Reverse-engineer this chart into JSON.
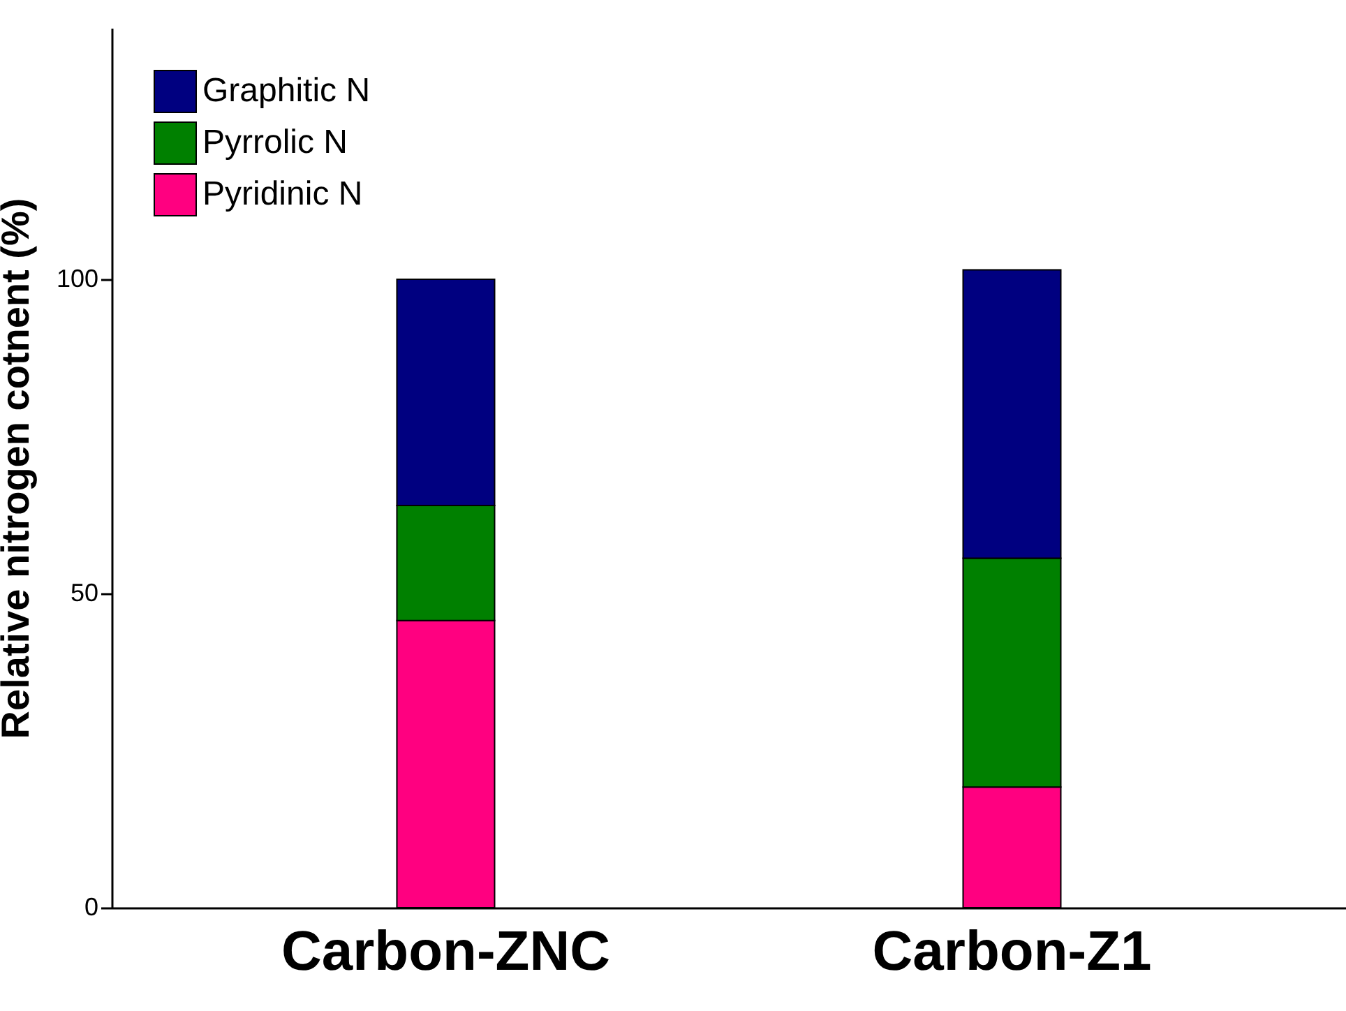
{
  "chart_data": {
    "type": "bar",
    "stacked": true,
    "ylabel": "Relative nitrogen cotnent (%)",
    "categories": [
      "Carbon-ZNC",
      "Carbon-Z1"
    ],
    "series": [
      {
        "name": "Pyridinic N",
        "color": "#ff0080",
        "values": [
          45.7,
          19.2
        ]
      },
      {
        "name": "Pyrrolic N",
        "color": "#008000",
        "values": [
          18.3,
          36.4
        ]
      },
      {
        "name": "Graphitic N",
        "color": "#000080",
        "values": [
          36.0,
          45.9
        ]
      }
    ],
    "ylim": [
      0,
      140
    ],
    "yticks": [
      0,
      50,
      100
    ],
    "legend": "top left",
    "grid": false
  }
}
